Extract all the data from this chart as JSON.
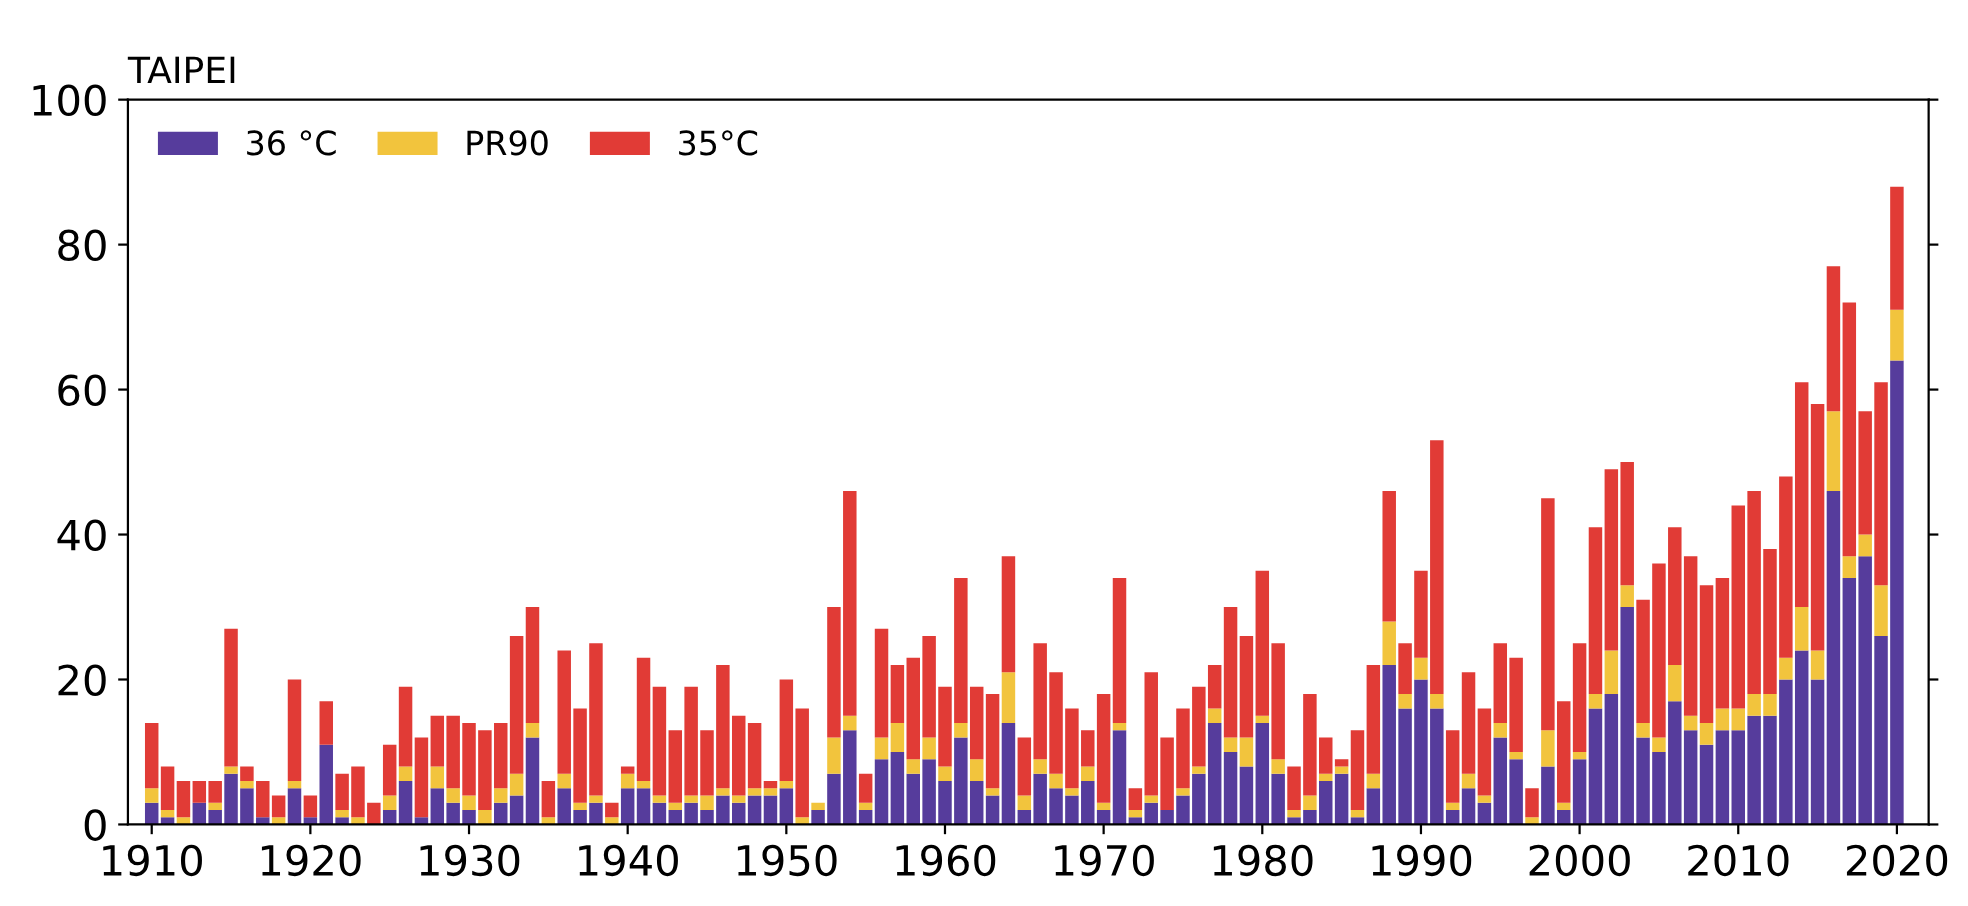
{
  "chart_data": {
    "type": "bar",
    "stacked": true,
    "title": "TAIPEI",
    "x": [
      1910,
      1911,
      1912,
      1913,
      1914,
      1915,
      1916,
      1917,
      1918,
      1919,
      1920,
      1921,
      1922,
      1923,
      1924,
      1925,
      1926,
      1927,
      1928,
      1929,
      1930,
      1931,
      1932,
      1933,
      1934,
      1935,
      1936,
      1937,
      1938,
      1939,
      1940,
      1941,
      1942,
      1943,
      1944,
      1945,
      1946,
      1947,
      1948,
      1949,
      1950,
      1951,
      1952,
      1953,
      1954,
      1955,
      1956,
      1957,
      1958,
      1959,
      1960,
      1961,
      1962,
      1963,
      1964,
      1965,
      1966,
      1967,
      1968,
      1969,
      1970,
      1971,
      1972,
      1973,
      1974,
      1975,
      1976,
      1977,
      1978,
      1979,
      1980,
      1981,
      1982,
      1983,
      1984,
      1985,
      1986,
      1987,
      1988,
      1989,
      1990,
      1991,
      1992,
      1993,
      1994,
      1995,
      1996,
      1997,
      1998,
      1999,
      2000,
      2001,
      2002,
      2003,
      2004,
      2005,
      2006,
      2007,
      2008,
      2009,
      2010,
      2011,
      2012,
      2013,
      2014,
      2015,
      2016,
      2017,
      2018,
      2019,
      2020
    ],
    "series": [
      {
        "name": "36 °C",
        "color": "#563c9c",
        "values": [
          3,
          1,
          0,
          3,
          2,
          7,
          5,
          1,
          0,
          5,
          1,
          11,
          1,
          0,
          0,
          2,
          6,
          1,
          5,
          3,
          2,
          0,
          3,
          4,
          12,
          0,
          5,
          2,
          3,
          0,
          5,
          5,
          3,
          2,
          3,
          2,
          4,
          3,
          4,
          4,
          5,
          0,
          2,
          7,
          13,
          2,
          9,
          10,
          7,
          9,
          6,
          12,
          6,
          4,
          14,
          2,
          7,
          5,
          4,
          6,
          2,
          13,
          1,
          3,
          2,
          4,
          7,
          14,
          10,
          8,
          14,
          7,
          1,
          2,
          6,
          7,
          1,
          5,
          22,
          16,
          20,
          16,
          2,
          5,
          3,
          12,
          9,
          0,
          8,
          2,
          9,
          16,
          18,
          30,
          12,
          10,
          17,
          13,
          11,
          13,
          13,
          15,
          15,
          20,
          24,
          20,
          46,
          34,
          37,
          26,
          64
        ]
      },
      {
        "name": "PR90",
        "color": "#f2c43d",
        "values": [
          2,
          1,
          1,
          0,
          1,
          1,
          1,
          0,
          1,
          1,
          0,
          0,
          1,
          1,
          0,
          2,
          2,
          0,
          3,
          2,
          2,
          2,
          2,
          3,
          2,
          1,
          2,
          1,
          1,
          1,
          2,
          1,
          1,
          1,
          1,
          2,
          1,
          1,
          1,
          1,
          1,
          1,
          1,
          5,
          2,
          1,
          3,
          4,
          2,
          3,
          2,
          2,
          3,
          1,
          7,
          2,
          2,
          2,
          1,
          2,
          1,
          1,
          1,
          1,
          0,
          1,
          1,
          2,
          2,
          4,
          1,
          2,
          1,
          2,
          1,
          1,
          1,
          2,
          6,
          2,
          3,
          2,
          1,
          2,
          1,
          2,
          1,
          1,
          5,
          1,
          1,
          2,
          6,
          3,
          2,
          2,
          5,
          2,
          3,
          3,
          3,
          3,
          3,
          3,
          6,
          4,
          11,
          3,
          3,
          7,
          7
        ]
      },
      {
        "name": "35°C",
        "color": "#e13b36",
        "values": [
          9,
          6,
          5,
          3,
          3,
          19,
          2,
          5,
          3,
          14,
          3,
          6,
          5,
          7,
          3,
          7,
          11,
          11,
          7,
          10,
          10,
          11,
          9,
          19,
          16,
          5,
          17,
          13,
          21,
          2,
          1,
          17,
          15,
          10,
          15,
          9,
          17,
          11,
          9,
          1,
          14,
          15,
          0,
          18,
          31,
          4,
          15,
          8,
          14,
          14,
          11,
          20,
          10,
          13,
          16,
          8,
          16,
          14,
          11,
          5,
          15,
          20,
          3,
          17,
          10,
          11,
          11,
          6,
          18,
          14,
          20,
          16,
          6,
          14,
          5,
          1,
          11,
          15,
          18,
          7,
          12,
          35,
          10,
          14,
          12,
          11,
          13,
          4,
          32,
          14,
          15,
          23,
          25,
          17,
          17,
          24,
          19,
          22,
          19,
          18,
          28,
          28,
          20,
          25,
          31,
          34,
          20,
          35,
          17,
          28,
          17
        ]
      }
    ],
    "xlim": [
      1908.5,
      2022
    ],
    "xticks": [
      1910,
      1920,
      1930,
      1940,
      1950,
      1960,
      1970,
      1980,
      1990,
      2000,
      2010,
      2020
    ],
    "ylim": [
      0,
      100
    ],
    "yticks": [
      0,
      20,
      40,
      60,
      80,
      100
    ],
    "legend": "top left",
    "grid": false
  }
}
